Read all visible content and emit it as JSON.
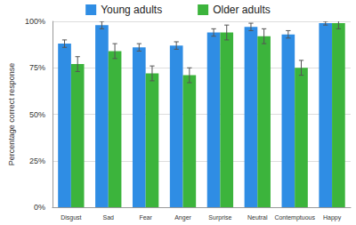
{
  "chart_data": {
    "type": "bar",
    "categories": [
      "Disgust",
      "Sad",
      "Fear",
      "Anger",
      "Surprise",
      "Neutral",
      "Contemptuous",
      "Happy"
    ],
    "series": [
      {
        "name": "Young adults",
        "color": "#2f8de4",
        "values": [
          88,
          98,
          86,
          87,
          94,
          97,
          93,
          99
        ],
        "errors": [
          2,
          2,
          2,
          2,
          2,
          2,
          2,
          1
        ]
      },
      {
        "name": "Older adults",
        "color": "#3cb43c",
        "values": [
          77,
          84,
          72,
          71,
          94,
          92,
          75,
          99
        ],
        "errors": [
          4,
          4,
          4,
          4,
          4,
          4,
          4,
          3
        ]
      }
    ],
    "y_label": "Percentage correct response",
    "ylim": [
      0,
      100
    ],
    "yticks": [
      {
        "value": 0,
        "label": "0%"
      },
      {
        "value": 25,
        "label": "25%"
      },
      {
        "value": 50,
        "label": "50%"
      },
      {
        "value": 75,
        "label": "75%"
      },
      {
        "value": 100,
        "label": "100%"
      }
    ],
    "grid": true,
    "legend": "top"
  }
}
